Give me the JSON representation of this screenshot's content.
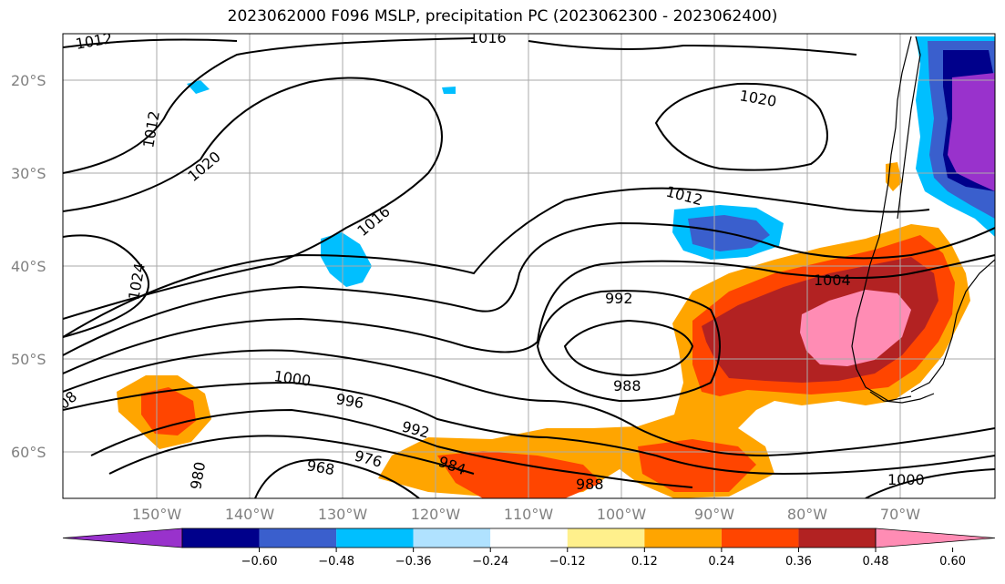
{
  "title": "2023062000 F096 MSLP, precipitation PC (2023062300 - 2023062400)",
  "lat_labels": [
    "20°S",
    "30°S",
    "40°S",
    "50°S",
    "60°S"
  ],
  "lon_labels": [
    "150°W",
    "140°W",
    "130°W",
    "120°W",
    "110°W",
    "100°W",
    "90°W",
    "80°W",
    "70°W"
  ],
  "contour_labels": [
    "1012",
    "1016",
    "1020",
    "1012",
    "1020",
    "1024",
    "1016",
    "1012",
    "992",
    "1004",
    "988",
    "1000",
    "996",
    "992",
    "984",
    "976",
    "968",
    "980",
    "1000",
    "988",
    "08"
  ],
  "colorbar": {
    "ticks": [
      "−0.60",
      "−0.48",
      "−0.36",
      "−0.24",
      "−0.12",
      "0.12",
      "0.24",
      "0.36",
      "0.48",
      "0.60"
    ],
    "colors": [
      "#9932cc",
      "#00008b",
      "#3a5fcd",
      "#00bfff",
      "#b0e2ff",
      "#ffffff",
      "#fff08c",
      "#ffa500",
      "#ff4500",
      "#b22222",
      "#ff8cb4"
    ]
  }
}
